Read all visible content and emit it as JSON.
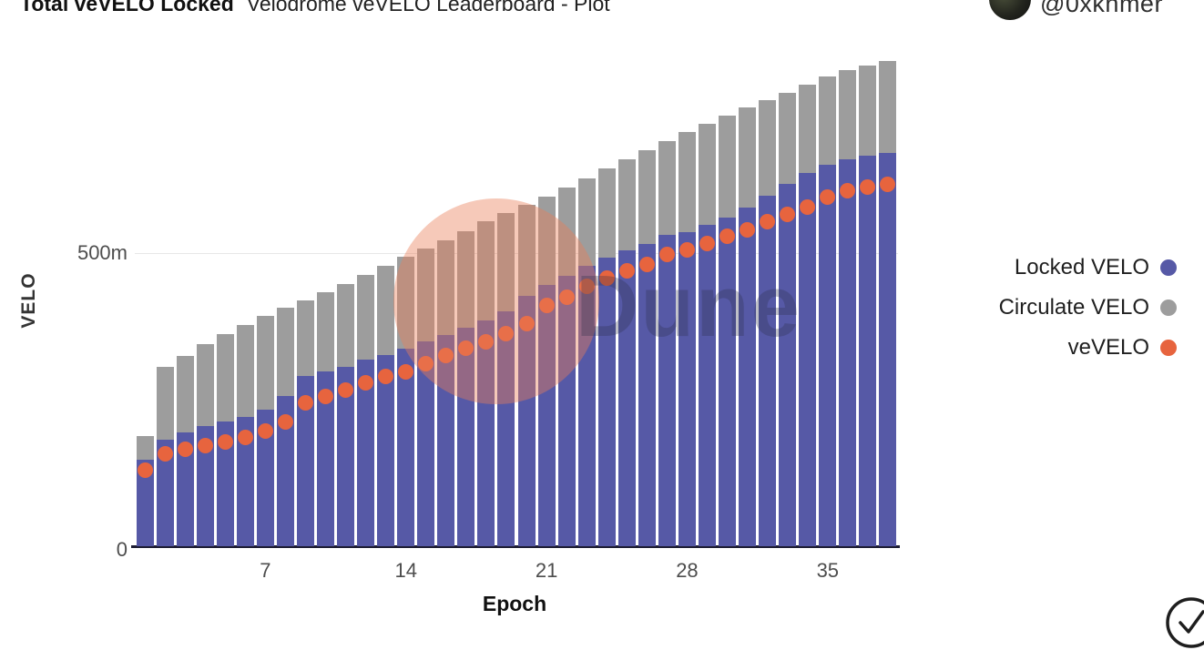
{
  "header": {
    "title": "Total veVELO Locked",
    "subtitle": "Velodrome veVELO Leaderboard - Plot",
    "author_handle": "@0xkhmer"
  },
  "watermark": {
    "text": "Dune"
  },
  "legend": {
    "position": "right",
    "items": [
      {
        "label": "Locked VELO",
        "color": "#5659a6"
      },
      {
        "label": "Circulate VELO",
        "color": "#9d9d9d"
      },
      {
        "label": "veVELO",
        "color": "#e7643e"
      }
    ]
  },
  "axes": {
    "x": {
      "label": "Epoch",
      "ticks": [
        7,
        14,
        21,
        28,
        35
      ]
    },
    "y": {
      "label": "VELO",
      "ticks": [
        {
          "value": 0,
          "label": "0"
        },
        {
          "value": 500,
          "label": "500m"
        }
      ]
    }
  },
  "chart_data": {
    "type": "bar",
    "stacked": true,
    "title": "Total veVELO Locked",
    "xlabel": "Epoch",
    "ylabel": "VELO",
    "unit": "millions of VELO",
    "x_range": [
      1,
      38
    ],
    "ylim": [
      0,
      860
    ],
    "yticks_m": [
      0,
      500
    ],
    "xticks": [
      7,
      14,
      21,
      28,
      35
    ],
    "grid": "single horizontal gridline at 500m",
    "legend_position": "right",
    "x": [
      1,
      2,
      3,
      4,
      5,
      6,
      7,
      8,
      9,
      10,
      11,
      12,
      13,
      14,
      15,
      16,
      17,
      18,
      19,
      20,
      21,
      22,
      23,
      24,
      25,
      26,
      27,
      28,
      29,
      30,
      31,
      32,
      33,
      34,
      35,
      36,
      37,
      38
    ],
    "series": [
      {
        "name": "Locked VELO",
        "type": "bar",
        "color": "#5659a6",
        "values": [
          147,
          182,
          194,
          205,
          213,
          221,
          233,
          256,
          290,
          298,
          306,
          318,
          326,
          337,
          349,
          361,
          373,
          385,
          401,
          427,
          446,
          461,
          478,
          492,
          505,
          516,
          531,
          536,
          548,
          560,
          578,
          598,
          618,
          637,
          650,
          660,
          666,
          671
        ]
      },
      {
        "name": "Circulate VELO",
        "type": "bar",
        "color": "#9d9d9d",
        "values": [
          41,
          124,
          131,
          140,
          149,
          157,
          160,
          151,
          130,
          135,
          141,
          144,
          152,
          157,
          159,
          161,
          165,
          169,
          167,
          155,
          150,
          151,
          150,
          152,
          155,
          159,
          160,
          170,
          172,
          174,
          170,
          163,
          156,
          151,
          151,
          152,
          154,
          157
        ]
      },
      {
        "name": "veVELO",
        "type": "scatter",
        "color": "#e7643e",
        "values": [
          129,
          158,
          166,
          172,
          178,
          186,
          196,
          212,
          244,
          256,
          266,
          278,
          290,
          298,
          312,
          326,
          338,
          349,
          362,
          380,
          411,
          424,
          443,
          458,
          470,
          481,
          497,
          505,
          516,
          528,
          540,
          553,
          566,
          579,
          595,
          606,
          613,
          617
        ]
      }
    ]
  }
}
